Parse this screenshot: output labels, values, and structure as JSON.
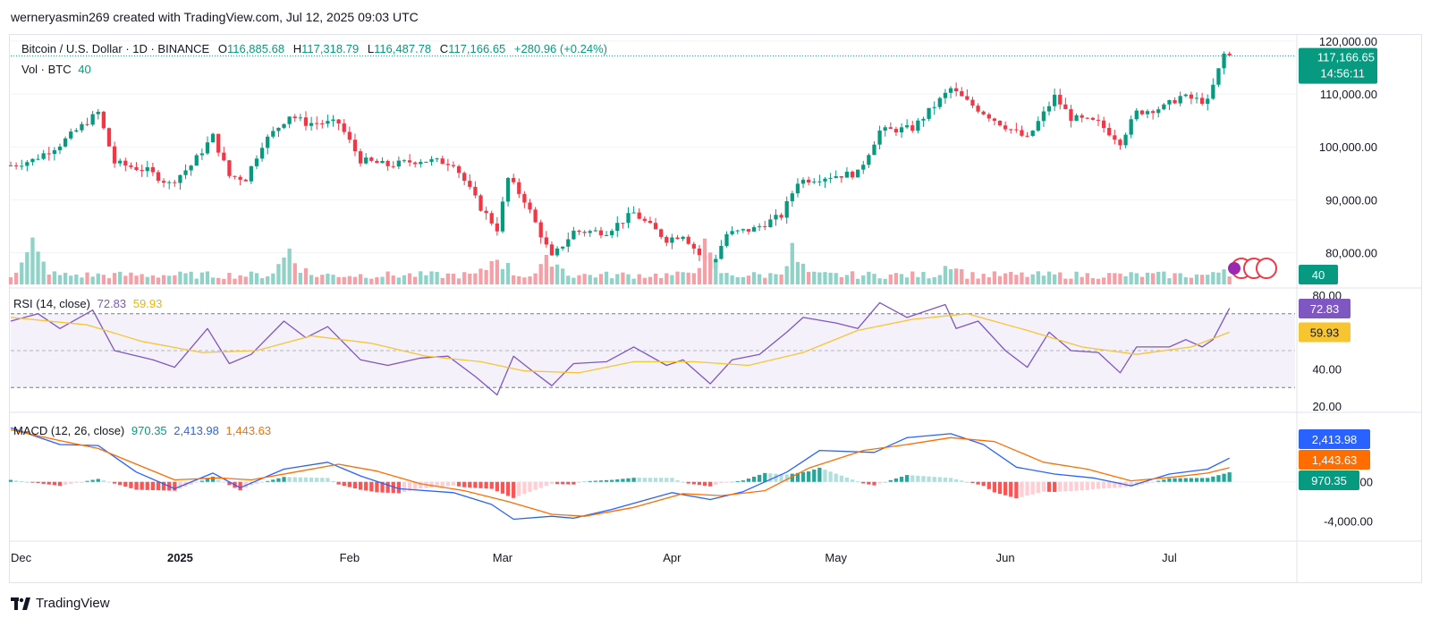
{
  "byline": "werneryasmin269 created with TradingView.com, Jul 12, 2025 09:03 UTC",
  "brand": "TradingView",
  "colors": {
    "up": "#089981",
    "down": "#f23645",
    "up_vol": "#8fd2c7",
    "down_vol": "#f5a0a6",
    "rsi": "#7e57c2",
    "rsi_ma": "#f7c531",
    "macd": "#2962ff",
    "signal": "#ff6d00",
    "hist_up": "#26a69a",
    "hist_up_light": "#b2dfdb",
    "hist_down": "#ff5252",
    "hist_down_light": "#ffcdd2"
  },
  "price_legend": {
    "symbol": "Bitcoin / U.S. Dollar · 1D · BINANCE",
    "o_label": "O",
    "o": "116,885.68",
    "h_label": "H",
    "h": "117,318.79",
    "l_label": "L",
    "l": "116,487.78",
    "c_label": "C",
    "c": "117,166.65",
    "change": "+280.96 (+0.24%)"
  },
  "vol_legend": {
    "label": "Vol · BTC",
    "value": "40"
  },
  "rsi_legend": {
    "label": "RSI (14, close)",
    "rsi": "72.83",
    "ma": "59.93"
  },
  "macd_legend": {
    "label": "MACD (12, 26, close)",
    "hist": "970.35",
    "macd": "2,413.98",
    "signal": "1,443.63"
  },
  "chart_data": [
    {
      "type": "candlestick",
      "title": "Bitcoin / U.S. Dollar · 1D · BINANCE",
      "x_ticks": [
        "Dec",
        "2025",
        "Feb",
        "Mar",
        "Apr",
        "May",
        "Jun",
        "Jul"
      ],
      "x_range": [
        "2024-12-01",
        "2025-07-24"
      ],
      "y_ticks": [
        "120,000.00",
        "110,000.00",
        "100,000.00",
        "90,000.00",
        "80,000.00"
      ],
      "ylim": [
        74000,
        121000
      ],
      "last_price": "117,166.65",
      "countdown": "14:56:11",
      "anchors": [
        [
          "2024-12-01",
          96500
        ],
        [
          "2024-12-05",
          97500
        ],
        [
          "2024-12-10",
          100500
        ],
        [
          "2024-12-17",
          106500
        ],
        [
          "2024-12-20",
          97000
        ],
        [
          "2024-12-26",
          95500
        ],
        [
          "2024-12-30",
          93000
        ],
        [
          "2025-01-03",
          96500
        ],
        [
          "2025-01-07",
          102000
        ],
        [
          "2025-01-10",
          94500
        ],
        [
          "2025-01-13",
          94000
        ],
        [
          "2025-01-16",
          100500
        ],
        [
          "2025-01-21",
          106000
        ],
        [
          "2025-01-24",
          104500
        ],
        [
          "2025-01-30",
          104500
        ],
        [
          "2025-02-03",
          97500
        ],
        [
          "2025-02-08",
          96500
        ],
        [
          "2025-02-14",
          97500
        ],
        [
          "2025-02-20",
          97000
        ],
        [
          "2025-02-25",
          88500
        ],
        [
          "2025-02-28",
          84500
        ],
        [
          "2025-03-02",
          94000
        ],
        [
          "2025-03-05",
          90000
        ],
        [
          "2025-03-10",
          79000
        ],
        [
          "2025-03-14",
          84000
        ],
        [
          "2025-03-20",
          84000
        ],
        [
          "2025-03-25",
          87500
        ],
        [
          "2025-03-31",
          82500
        ],
        [
          "2025-04-03",
          83500
        ],
        [
          "2025-04-08",
          77000
        ],
        [
          "2025-04-11",
          83500
        ],
        [
          "2025-04-16",
          84500
        ],
        [
          "2025-04-21",
          87000
        ],
        [
          "2025-04-24",
          93500
        ],
        [
          "2025-04-30",
          94500
        ],
        [
          "2025-05-05",
          95000
        ],
        [
          "2025-05-09",
          103000
        ],
        [
          "2025-05-15",
          103500
        ],
        [
          "2025-05-22",
          111000
        ],
        [
          "2025-05-25",
          108500
        ],
        [
          "2025-05-31",
          104500
        ],
        [
          "2025-06-05",
          101500
        ],
        [
          "2025-06-10",
          109500
        ],
        [
          "2025-06-13",
          105500
        ],
        [
          "2025-06-18",
          104500
        ],
        [
          "2025-06-22",
          101000
        ],
        [
          "2025-06-25",
          106500
        ],
        [
          "2025-06-30",
          107500
        ],
        [
          "2025-07-03",
          109500
        ],
        [
          "2025-07-08",
          108500
        ],
        [
          "2025-07-11",
          117500
        ],
        [
          "2025-07-12",
          117166
        ]
      ]
    },
    {
      "type": "bar",
      "title": "Vol · BTC",
      "last_value": "40",
      "relative_peaks": [
        [
          "2024-12-05",
          0.9
        ],
        [
          "2025-01-21",
          0.85
        ],
        [
          "2025-02-28",
          0.75
        ],
        [
          "2025-03-10",
          0.7
        ],
        [
          "2025-04-07",
          0.8
        ],
        [
          "2025-04-23",
          0.75
        ],
        [
          "2025-05-22",
          0.6
        ],
        [
          "2025-07-11",
          0.4
        ]
      ]
    },
    {
      "type": "line",
      "title": "RSI (14, close)",
      "y_ticks": [
        "80.00",
        "40.00",
        "20.00"
      ],
      "ylim": [
        18,
        83
      ],
      "bands": [
        70,
        50,
        30
      ],
      "last_rsi": "72.83",
      "last_ma": "59.93",
      "series": [
        {
          "name": "RSI",
          "points": [
            [
              "2024-12-01",
              66
            ],
            [
              "2024-12-06",
              70
            ],
            [
              "2024-12-10",
              62
            ],
            [
              "2024-12-16",
              72
            ],
            [
              "2024-12-20",
              50
            ],
            [
              "2024-12-27",
              45
            ],
            [
              "2024-12-31",
              41
            ],
            [
              "2025-01-06",
              62
            ],
            [
              "2025-01-10",
              43
            ],
            [
              "2025-01-14",
              48
            ],
            [
              "2025-01-20",
              66
            ],
            [
              "2025-01-24",
              57
            ],
            [
              "2025-01-28",
              63
            ],
            [
              "2025-02-03",
              45
            ],
            [
              "2025-02-08",
              42
            ],
            [
              "2025-02-14",
              46
            ],
            [
              "2025-02-19",
              47
            ],
            [
              "2025-02-24",
              36
            ],
            [
              "2025-02-28",
              26
            ],
            [
              "2025-03-03",
              47
            ],
            [
              "2025-03-06",
              40
            ],
            [
              "2025-03-10",
              31
            ],
            [
              "2025-03-14",
              43
            ],
            [
              "2025-03-20",
              44
            ],
            [
              "2025-03-25",
              52
            ],
            [
              "2025-03-31",
              42
            ],
            [
              "2025-04-03",
              45
            ],
            [
              "2025-04-08",
              32
            ],
            [
              "2025-04-12",
              45
            ],
            [
              "2025-04-17",
              48
            ],
            [
              "2025-04-22",
              60
            ],
            [
              "2025-04-25",
              68
            ],
            [
              "2025-05-01",
              65
            ],
            [
              "2025-05-05",
              62
            ],
            [
              "2025-05-09",
              76
            ],
            [
              "2025-05-14",
              68
            ],
            [
              "2025-05-21",
              75
            ],
            [
              "2025-05-23",
              62
            ],
            [
              "2025-05-27",
              66
            ],
            [
              "2025-06-01",
              50
            ],
            [
              "2025-06-05",
              41
            ],
            [
              "2025-06-09",
              60
            ],
            [
              "2025-06-13",
              50
            ],
            [
              "2025-06-18",
              49
            ],
            [
              "2025-06-22",
              38
            ],
            [
              "2025-06-25",
              52
            ],
            [
              "2025-07-01",
              52
            ],
            [
              "2025-07-04",
              56
            ],
            [
              "2025-07-07",
              52
            ],
            [
              "2025-07-09",
              56
            ],
            [
              "2025-07-12",
              73
            ]
          ]
        },
        {
          "name": "RSI-based MA",
          "points": [
            [
              "2024-12-01",
              68
            ],
            [
              "2024-12-15",
              64
            ],
            [
              "2024-12-25",
              55
            ],
            [
              "2025-01-05",
              49
            ],
            [
              "2025-01-15",
              50
            ],
            [
              "2025-01-25",
              58
            ],
            [
              "2025-02-05",
              54
            ],
            [
              "2025-02-15",
              47
            ],
            [
              "2025-02-25",
              44
            ],
            [
              "2025-03-05",
              39
            ],
            [
              "2025-03-15",
              38
            ],
            [
              "2025-03-25",
              44
            ],
            [
              "2025-04-05",
              44
            ],
            [
              "2025-04-15",
              42
            ],
            [
              "2025-04-25",
              49
            ],
            [
              "2025-05-05",
              61
            ],
            [
              "2025-05-15",
              67
            ],
            [
              "2025-05-25",
              70
            ],
            [
              "2025-06-05",
              61
            ],
            [
              "2025-06-15",
              52
            ],
            [
              "2025-06-25",
              48
            ],
            [
              "2025-07-05",
              52
            ],
            [
              "2025-07-12",
              60
            ]
          ]
        }
      ]
    },
    {
      "type": "line",
      "title": "MACD (12, 26, close)",
      "y_ticks": [
        "0.00",
        "-4,000.00"
      ],
      "ylim": [
        -5300,
        6800
      ],
      "last_hist": "970.35",
      "last_macd": "2,413.98",
      "last_signal": "1,443.63",
      "series": [
        {
          "name": "MACD",
          "points": [
            [
              "2024-12-01",
              5500
            ],
            [
              "2024-12-10",
              3800
            ],
            [
              "2024-12-17",
              3700
            ],
            [
              "2024-12-24",
              1000
            ],
            [
              "2024-12-31",
              -700
            ],
            [
              "2025-01-07",
              900
            ],
            [
              "2025-01-12",
              -600
            ],
            [
              "2025-01-20",
              1300
            ],
            [
              "2025-01-28",
              2000
            ],
            [
              "2025-02-03",
              600
            ],
            [
              "2025-02-10",
              -700
            ],
            [
              "2025-02-20",
              -1100
            ],
            [
              "2025-02-27",
              -2300
            ],
            [
              "2025-03-03",
              -3800
            ],
            [
              "2025-03-10",
              -3500
            ],
            [
              "2025-03-14",
              -3700
            ],
            [
              "2025-03-21",
              -2800
            ],
            [
              "2025-04-01",
              -1100
            ],
            [
              "2025-04-08",
              -1800
            ],
            [
              "2025-04-14",
              -1000
            ],
            [
              "2025-04-22",
              1000
            ],
            [
              "2025-04-28",
              3200
            ],
            [
              "2025-05-08",
              3000
            ],
            [
              "2025-05-14",
              4500
            ],
            [
              "2025-05-22",
              4900
            ],
            [
              "2025-05-28",
              3800
            ],
            [
              "2025-06-03",
              1500
            ],
            [
              "2025-06-10",
              800
            ],
            [
              "2025-06-17",
              400
            ],
            [
              "2025-06-24",
              -400
            ],
            [
              "2025-07-01",
              800
            ],
            [
              "2025-07-08",
              1300
            ],
            [
              "2025-07-12",
              2414
            ]
          ]
        },
        {
          "name": "Signal",
          "points": [
            [
              "2024-12-01",
              5300
            ],
            [
              "2024-12-10",
              4200
            ],
            [
              "2024-12-17",
              3400
            ],
            [
              "2024-12-24",
              1800
            ],
            [
              "2024-12-31",
              200
            ],
            [
              "2025-01-08",
              400
            ],
            [
              "2025-01-14",
              200
            ],
            [
              "2025-01-22",
              1000
            ],
            [
              "2025-01-30",
              1800
            ],
            [
              "2025-02-06",
              1100
            ],
            [
              "2025-02-14",
              -200
            ],
            [
              "2025-02-22",
              -900
            ],
            [
              "2025-03-02",
              -2000
            ],
            [
              "2025-03-10",
              -3300
            ],
            [
              "2025-03-16",
              -3500
            ],
            [
              "2025-03-25",
              -2600
            ],
            [
              "2025-04-03",
              -1200
            ],
            [
              "2025-04-10",
              -1400
            ],
            [
              "2025-04-18",
              -900
            ],
            [
              "2025-04-26",
              1400
            ],
            [
              "2025-05-06",
              3200
            ],
            [
              "2025-05-14",
              3800
            ],
            [
              "2025-05-22",
              4500
            ],
            [
              "2025-05-30",
              4100
            ],
            [
              "2025-06-08",
              2000
            ],
            [
              "2025-06-16",
              1300
            ],
            [
              "2025-06-24",
              100
            ],
            [
              "2025-07-02",
              500
            ],
            [
              "2025-07-08",
              900
            ],
            [
              "2025-07-12",
              1444
            ]
          ]
        }
      ]
    }
  ]
}
